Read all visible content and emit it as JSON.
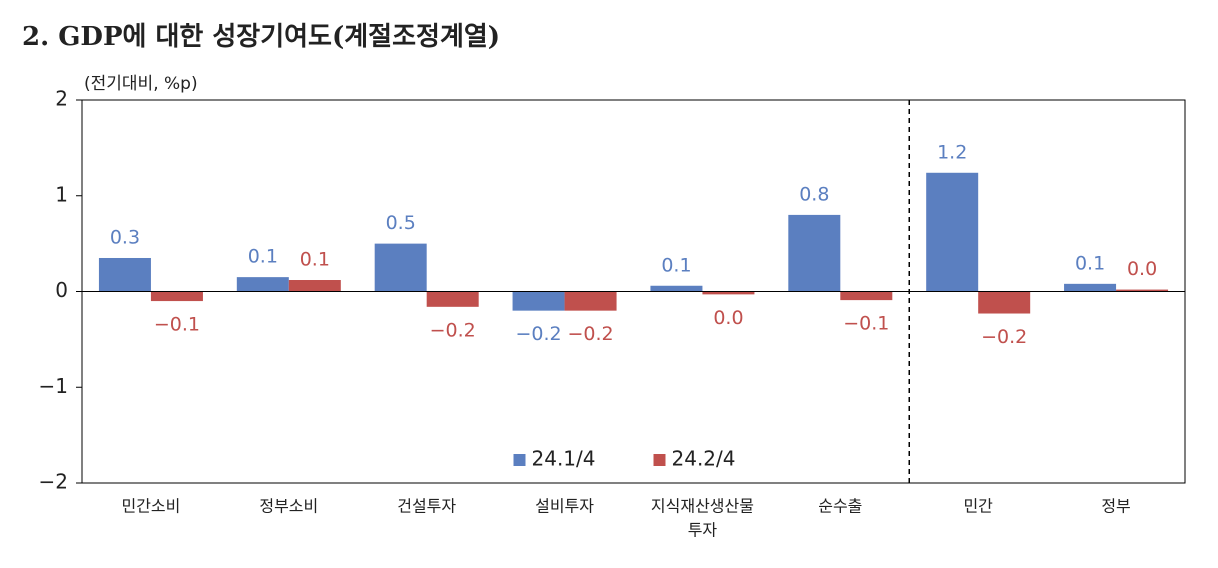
{
  "chart_data": {
    "type": "bar",
    "title": "2. GDP에 대한 성장기여도(계절조정계열)",
    "y_label": "(전기대비, %p)",
    "categories": [
      "민간소비",
      "정부소비",
      "건설투자",
      "설비투자",
      [
        "지식재산생산물",
        "투자"
      ],
      "순수출",
      "민간",
      "정부"
    ],
    "series": [
      {
        "name": "24.1/4",
        "color": "#5b7fc0",
        "label_color": "#5b7fc0",
        "values": [
          0.35,
          0.15,
          0.5,
          -0.2,
          0.06,
          0.8,
          1.24,
          0.08
        ],
        "value_labels": [
          "0.3",
          "0.1",
          "0.5",
          "−0.2",
          "0.1",
          "0.8",
          "1.2",
          "0.1"
        ]
      },
      {
        "name": "24.2/4",
        "color": "#c0504d",
        "label_color": "#c0504d",
        "values": [
          -0.1,
          0.12,
          -0.16,
          -0.2,
          -0.03,
          -0.09,
          -0.23,
          0.02
        ],
        "value_labels": [
          "−0.1",
          "0.1",
          "−0.2",
          "−0.2",
          "0.0",
          "−0.1",
          "−0.2",
          "0.0"
        ]
      }
    ],
    "ylim": [
      -2,
      2
    ],
    "yticks": [
      {
        "value": -2,
        "label": "−2"
      },
      {
        "value": -1,
        "label": "−1"
      },
      0,
      1,
      2
    ],
    "legend": "lower center"
  }
}
